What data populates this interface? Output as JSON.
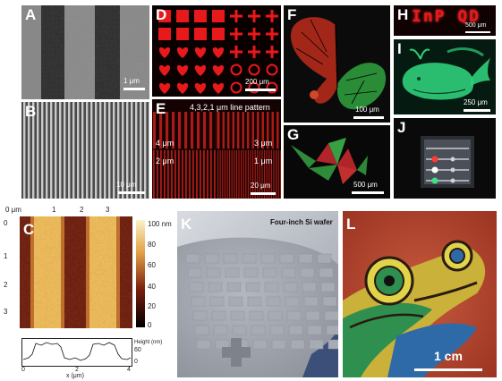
{
  "panels": {
    "A": {
      "label": "A",
      "scalebar": "1 μm"
    },
    "B": {
      "label": "B",
      "scalebar": "10 μm"
    },
    "C": {
      "label": "C",
      "x_unit_top": "0 μm",
      "x_ticks_top": [
        "1",
        "2",
        "3"
      ],
      "y_ticks": [
        "0",
        "1",
        "2",
        "3"
      ],
      "colorbar_ticks": [
        "100 nm",
        "80",
        "60",
        "40",
        "20",
        "0"
      ],
      "profile_ylabel": "Height (nm)",
      "profile_yticks": [
        "60",
        "0"
      ],
      "profile_xticks": [
        "0",
        "2",
        "4"
      ],
      "profile_xlabel": "x (μm)"
    },
    "D": {
      "label": "D",
      "scalebar": "200 μm"
    },
    "E": {
      "label": "E",
      "title": "4,3,2,1 μm line pattern",
      "q1": "4 μm",
      "q2": "3 μm",
      "q3": "2 μm",
      "q4": "1 μm",
      "scalebar": "20 μm"
    },
    "F": {
      "label": "F",
      "scalebar": "100 μm"
    },
    "G": {
      "label": "G",
      "scalebar": "500 μm"
    },
    "H": {
      "label": "H",
      "text": "InP QD",
      "scalebar": "500 μm"
    },
    "I": {
      "label": "I",
      "scalebar": "250 μm"
    },
    "J": {
      "label": "J"
    },
    "K": {
      "label": "K",
      "title": "Four-inch Si wafer"
    },
    "L": {
      "label": "L",
      "scalebar": "1 cm"
    }
  },
  "colors": {
    "red_pattern": "#e8191b",
    "green_pattern": "#2fcf7a",
    "afm_light": "#f1c25c",
    "afm_dark": "#6a1c0e"
  }
}
